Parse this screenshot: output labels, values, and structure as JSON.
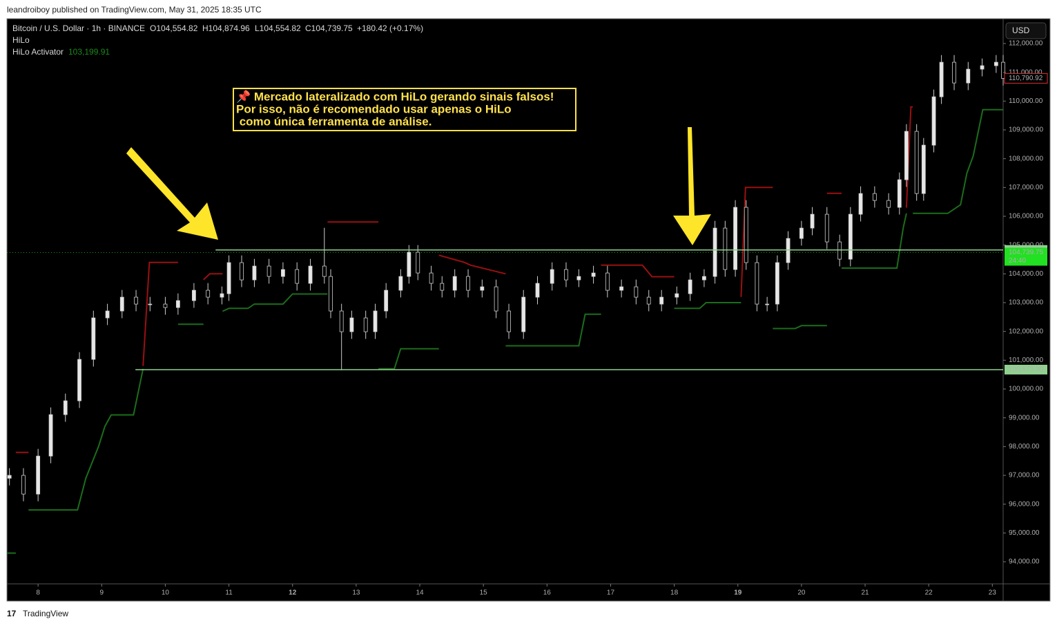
{
  "header": {
    "published": "leandroiboy published on TradingView.com, May 31, 2025 18:35 UTC",
    "footer": "TradingView",
    "currency": "USD"
  },
  "legend": {
    "symbol": "Bitcoin / U.S. Dollar · 1h · BINANCE",
    "open": "O104,554.82",
    "high": "H104,874.96",
    "low": "L104,554.82",
    "close": "C104,739.75",
    "change": "+180.42 (+0.17%)",
    "indicator1": "HiLo",
    "indicator2": "HiLo Activator",
    "indicator2_value": "103,199.91"
  },
  "annotation": {
    "lines": [
      "📌 Mercado lateralizado com HiLo gerando sinais falsos!",
      "Por isso, não é recomendado usar apenas o HiLo",
      " como única ferramenta de análise."
    ],
    "color": "#ffe14d"
  },
  "chart_data": {
    "type": "candlestick",
    "x": [
      7.55,
      7.77,
      8.0,
      8.2,
      8.43,
      8.65,
      8.87,
      9.09,
      9.32,
      9.54,
      9.76,
      10.0,
      10.2,
      10.45,
      10.67,
      10.89,
      11.0,
      11.2,
      11.4,
      11.63,
      11.85,
      12.07,
      12.28,
      12.5,
      12.6,
      12.77,
      12.93,
      13.15,
      13.3,
      13.47,
      13.7,
      13.83,
      13.97,
      14.18,
      14.35,
      14.55,
      14.76,
      14.98,
      15.2,
      15.4,
      15.63,
      15.85,
      16.08,
      16.3,
      16.5,
      16.73,
      16.95,
      17.17,
      17.4,
      17.6,
      17.8,
      18.04,
      18.25,
      18.47,
      18.64,
      18.8,
      18.96,
      19.13,
      19.3,
      19.46,
      19.62,
      19.79,
      20.0,
      20.17,
      20.4,
      20.6,
      20.77,
      20.93,
      21.15,
      21.37,
      21.54,
      21.65,
      21.81,
      21.92,
      22.08,
      22.2,
      22.4,
      22.62,
      22.84,
      23.06,
      23.17
    ],
    "open": [
      96900,
      97000,
      96350,
      97670,
      99110,
      99590,
      101030,
      102470,
      102710,
      103190,
      102950,
      102950,
      102830,
      103070,
      103430,
      103190,
      103310,
      104390,
      103790,
      104270,
      103910,
      104150,
      103670,
      104270,
      103910,
      102710,
      101990,
      102470,
      101990,
      102710,
      103430,
      103910,
      104750,
      104030,
      103670,
      103430,
      103910,
      103430,
      103550,
      102710,
      101990,
      103190,
      103670,
      104150,
      103790,
      103910,
      104030,
      103430,
      103550,
      103190,
      102950,
      103190,
      103310,
      103790,
      103910,
      105590,
      104150,
      106310,
      104390,
      102950,
      102950,
      104390,
      105230,
      105590,
      106070,
      105110,
      104510,
      106070,
      106790,
      106550,
      106310,
      107270,
      108950,
      106790,
      108470,
      110150,
      111350,
      110630,
      111110,
      111230,
      111350
    ],
    "high": [
      97250,
      97250,
      97920,
      99360,
      99840,
      101280,
      102720,
      102960,
      103440,
      103440,
      103200,
      103200,
      103320,
      103680,
      103680,
      103560,
      104640,
      104640,
      104520,
      104520,
      104400,
      104400,
      104520,
      105600,
      104160,
      102960,
      102720,
      102720,
      102960,
      103680,
      104160,
      105000,
      105000,
      104280,
      103920,
      104160,
      104160,
      103800,
      103800,
      102960,
      103440,
      103920,
      104400,
      104400,
      104160,
      104280,
      104280,
      103800,
      103800,
      103440,
      103440,
      103560,
      104040,
      104160,
      105840,
      105840,
      106560,
      106560,
      104640,
      103200,
      104640,
      105480,
      105840,
      106320,
      106320,
      105360,
      106320,
      107040,
      107040,
      106800,
      107520,
      109200,
      109200,
      108720,
      110400,
      111600,
      111600,
      111360,
      111480,
      111600,
      111600
    ],
    "low": [
      96650,
      96100,
      96100,
      97420,
      98860,
      99340,
      100780,
      102220,
      102460,
      102700,
      102700,
      102580,
      102580,
      102820,
      102940,
      102940,
      103060,
      103540,
      103540,
      103660,
      103660,
      103420,
      103420,
      103660,
      102460,
      100650,
      101740,
      101740,
      101740,
      102460,
      103180,
      103660,
      103780,
      103420,
      103180,
      103180,
      103180,
      103180,
      102460,
      101740,
      101740,
      102940,
      103420,
      103540,
      103540,
      103660,
      103180,
      103180,
      102940,
      102700,
      102700,
      102940,
      103060,
      103540,
      103660,
      103900,
      103900,
      104140,
      102700,
      102700,
      102700,
      104140,
      104980,
      105340,
      104860,
      104260,
      104260,
      105820,
      106300,
      106060,
      106060,
      107020,
      106540,
      106540,
      108220,
      109900,
      110380,
      110380,
      110860,
      110980,
      110540
    ],
    "close": [
      97000,
      96350,
      97670,
      99110,
      99590,
      101030,
      102470,
      102710,
      103190,
      102950,
      102950,
      102830,
      103070,
      103430,
      103190,
      103310,
      104390,
      103790,
      104270,
      103910,
      104150,
      103670,
      104270,
      103910,
      102710,
      101990,
      102470,
      101990,
      102710,
      103430,
      103910,
      104750,
      104030,
      103670,
      103430,
      103910,
      103430,
      103550,
      102710,
      101990,
      103190,
      103670,
      104150,
      103790,
      103910,
      104030,
      103430,
      103550,
      103190,
      102950,
      103190,
      103310,
      103790,
      103910,
      105590,
      104150,
      106310,
      104390,
      102950,
      102950,
      104390,
      105230,
      105590,
      106070,
      105110,
      104510,
      106070,
      106790,
      106550,
      106310,
      107270,
      108950,
      106790,
      108470,
      110150,
      111350,
      110630,
      111110,
      111230,
      111350,
      110790
    ],
    "up_color": "#e6e6e6",
    "down_color": "#000000",
    "wick_color": "#cfcfcf",
    "series": [
      {
        "color": "#1b6e1b",
        "x": [
          7.51,
          7.65,
          7.75,
          7.85,
          8.62,
          8.75,
          8.95,
          9.05,
          9.15,
          9.5,
          9.65,
          9.9,
          10.2,
          10.6,
          10.75,
          10.9,
          11.0,
          11.3,
          11.4,
          11.85,
          12.0,
          12.55,
          13.0,
          13.35,
          13.6,
          13.7,
          14.3,
          14.8,
          15.35,
          16.5,
          16.6,
          16.85,
          17.4,
          18.0,
          18.4,
          18.5,
          19.05,
          19.3,
          19.55,
          19.9,
          20.0,
          20.4,
          20.5,
          20.63,
          21.5,
          21.6,
          21.65,
          21.7,
          21.75,
          22.3,
          22.5,
          22.6,
          22.7,
          22.85,
          23.17
        ],
        "values": [
          94300,
          94300,
          null,
          95800,
          95800,
          96900,
          98000,
          98700,
          99100,
          99100,
          100700,
          null,
          102250,
          102250,
          null,
          102700,
          102800,
          102800,
          102950,
          102950,
          103300,
          103300,
          null,
          100700,
          100700,
          101400,
          101400,
          null,
          101500,
          101500,
          102600,
          102600,
          null,
          102800,
          102800,
          103000,
          103000,
          null,
          102100,
          102100,
          102200,
          102200,
          null,
          104200,
          104200,
          105600,
          106100,
          null,
          106100,
          106100,
          106400,
          107500,
          108100,
          109700,
          109700
        ]
      },
      {
        "color": "#9b1010",
        "x": [
          7.65,
          7.85,
          8.5,
          9.65,
          9.75,
          10.2,
          10.4,
          10.6,
          10.7,
          10.9,
          12.2,
          12.55,
          13.35,
          13.8,
          14.3,
          14.7,
          14.8,
          15.35,
          16.0,
          16.85,
          17.5,
          17.65,
          18.0,
          18.5,
          19.05,
          19.12,
          19.55,
          20.0,
          20.4,
          20.63,
          21.0,
          21.65,
          21.72,
          21.75
        ],
        "values": [
          97800,
          97800,
          null,
          100800,
          104400,
          104400,
          null,
          103800,
          104000,
          104000,
          null,
          105800,
          105800,
          null,
          104650,
          104400,
          104300,
          104000,
          null,
          104300,
          104300,
          103900,
          103900,
          null,
          103200,
          107000,
          107000,
          null,
          106800,
          106800,
          null,
          106300,
          109800,
          109800
        ]
      }
    ],
    "levels": [
      {
        "value": 104828.88,
        "label": "104,828.88",
        "x_start": 10.79,
        "color": "#8fd18f"
      },
      {
        "value": 100673.3,
        "label": "100,673.30",
        "x_start": 9.53,
        "color": "#8fd18f"
      }
    ],
    "current_price": {
      "value": 104739.75,
      "label": "104,739.75",
      "countdown": "24:40",
      "color": "#22e022"
    },
    "last_price": {
      "value": 110790.92,
      "label": "110,790.92",
      "color": "#e03030"
    },
    "xlim": [
      7.51,
      23.17
    ],
    "xticks": [
      8,
      9,
      10,
      11,
      12,
      13,
      14,
      15,
      16,
      17,
      18,
      19,
      20,
      21,
      22,
      23
    ],
    "bold_xticks": [
      12,
      19
    ],
    "ylim": [
      93232,
      112840
    ],
    "yticks": [
      {
        "value": 94000,
        "label": "94,000.00"
      },
      {
        "value": 95000,
        "label": "95,000.00"
      },
      {
        "value": 96000,
        "label": "96,000.00"
      },
      {
        "value": 97000,
        "label": "97,000.00"
      },
      {
        "value": 98000,
        "label": "98,000.00"
      },
      {
        "value": 99000,
        "label": "99,000.00"
      },
      {
        "value": 100000,
        "label": "100,000.00"
      },
      {
        "value": 101000,
        "label": "101,000.00"
      },
      {
        "value": 102000,
        "label": "102,000.00"
      },
      {
        "value": 103000,
        "label": "103,000.00"
      },
      {
        "value": 104000,
        "label": "104,000.00"
      },
      {
        "value": 105000,
        "label": "105,000.00"
      },
      {
        "value": 106000,
        "label": "106,000.00"
      },
      {
        "value": 107000,
        "label": "107,000.00"
      },
      {
        "value": 108000,
        "label": "108,000.00"
      },
      {
        "value": 109000,
        "label": "109,000.00"
      },
      {
        "value": 110000,
        "label": "110,000.00"
      },
      {
        "value": 111000,
        "label": "111,000.00"
      },
      {
        "value": 112000,
        "label": "112,000.00"
      }
    ],
    "grid": false
  }
}
